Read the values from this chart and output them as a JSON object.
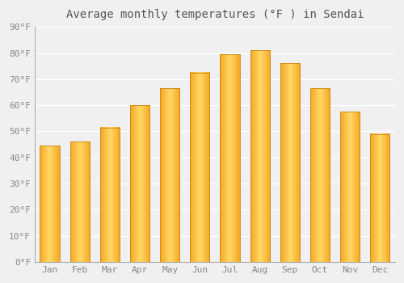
{
  "months": [
    "Jan",
    "Feb",
    "Mar",
    "Apr",
    "May",
    "Jun",
    "Jul",
    "Aug",
    "Sep",
    "Oct",
    "Nov",
    "Dec"
  ],
  "values": [
    44.5,
    46.0,
    51.5,
    60.0,
    66.5,
    72.5,
    79.5,
    81.0,
    76.0,
    66.5,
    57.5,
    49.0
  ],
  "bar_color_left": "#F5A623",
  "bar_color_center": "#FFD966",
  "bar_color_right": "#F5A623",
  "bar_edge_color": "#C8861A",
  "title": "Average monthly temperatures (°F ) in Sendai",
  "ylim": [
    0,
    90
  ],
  "ytick_step": 10,
  "background_color": "#f0f0f0",
  "grid_color": "#ffffff",
  "title_fontsize": 10,
  "tick_fontsize": 8,
  "tick_color": "#888888"
}
